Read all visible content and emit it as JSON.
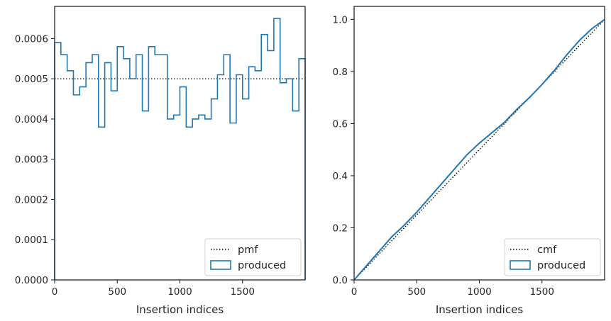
{
  "chart_data": [
    {
      "type": "histogram-step",
      "title": "",
      "xlabel": "Insertion indices",
      "ylabel": "",
      "xlim": [
        0,
        2000
      ],
      "ylim": [
        0,
        0.00068
      ],
      "xticks": [
        0,
        500,
        1000,
        1500
      ],
      "xtick_labels": [
        "0",
        "500",
        "1000",
        "1500"
      ],
      "yticks": [
        0,
        0.0001,
        0.0002,
        0.0003,
        0.0004,
        0.0005,
        0.0006
      ],
      "ytick_labels": [
        "0.0000",
        "0.0001",
        "0.0002",
        "0.0003",
        "0.0004",
        "0.0005",
        "0.0006"
      ],
      "grid": false,
      "legend_location": "lower-right",
      "bin_width": 50,
      "series": [
        {
          "name": "pmf",
          "style": "dotted",
          "color": "#000000",
          "x": [
            0,
            2000
          ],
          "values": [
            0.0005,
            0.0005
          ]
        },
        {
          "name": "produced",
          "style": "step",
          "color": "#1f77b4",
          "bin_edges": [
            0,
            50,
            100,
            150,
            200,
            250,
            300,
            350,
            400,
            450,
            500,
            550,
            600,
            650,
            700,
            750,
            800,
            850,
            900,
            950,
            1000,
            1050,
            1100,
            1150,
            1200,
            1250,
            1300,
            1350,
            1400,
            1450,
            1500,
            1550,
            1600,
            1650,
            1700,
            1750,
            1800,
            1850,
            1900,
            1950,
            2000
          ],
          "values": [
            0.00059,
            0.00056,
            0.00052,
            0.00046,
            0.00048,
            0.00054,
            0.00056,
            0.00038,
            0.00054,
            0.00047,
            0.00058,
            0.00055,
            0.0005,
            0.00056,
            0.00042,
            0.00058,
            0.00056,
            0.00056,
            0.0004,
            0.00041,
            0.00048,
            0.00038,
            0.0004,
            0.00041,
            0.0004,
            0.00045,
            0.00051,
            0.00056,
            0.00039,
            0.00051,
            0.00045,
            0.00053,
            0.00052,
            0.00061,
            0.00057,
            0.00065,
            0.00049,
            0.0005,
            0.00042,
            0.00055
          ]
        }
      ]
    },
    {
      "type": "line",
      "title": "",
      "xlabel": "Insertion indices",
      "ylabel": "",
      "xlim": [
        0,
        2000
      ],
      "ylim": [
        0,
        1.05
      ],
      "xticks": [
        0,
        500,
        1000,
        1500
      ],
      "xtick_labels": [
        "0",
        "500",
        "1000",
        "1500"
      ],
      "yticks": [
        0,
        0.2,
        0.4,
        0.6,
        0.8,
        1.0
      ],
      "ytick_labels": [
        "0.0",
        "0.2",
        "0.4",
        "0.6",
        "0.8",
        "1.0"
      ],
      "grid": false,
      "legend_location": "lower-right",
      "series": [
        {
          "name": "cmf",
          "style": "dotted",
          "color": "#000000",
          "x": [
            0,
            2000
          ],
          "values": [
            0,
            1.0
          ]
        },
        {
          "name": "produced",
          "style": "solid",
          "color": "#1f77b4",
          "x": [
            0,
            100,
            200,
            300,
            400,
            500,
            600,
            700,
            800,
            900,
            1000,
            1100,
            1200,
            1300,
            1400,
            1500,
            1600,
            1700,
            1800,
            1900,
            2000
          ],
          "values": [
            0,
            0.055,
            0.11,
            0.165,
            0.21,
            0.26,
            0.315,
            0.37,
            0.425,
            0.48,
            0.525,
            0.565,
            0.605,
            0.655,
            0.7,
            0.75,
            0.805,
            0.865,
            0.92,
            0.965,
            1.0
          ]
        }
      ]
    }
  ]
}
